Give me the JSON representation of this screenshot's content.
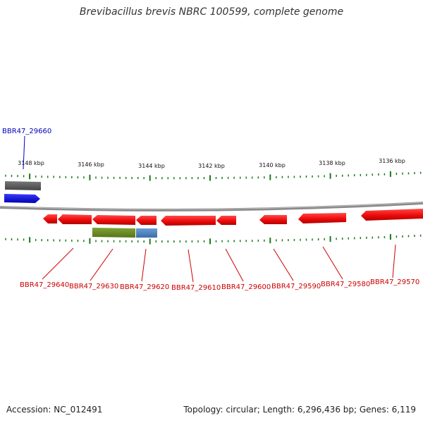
{
  "title": "Brevibacillus brevis NBRC 100599, complete genome",
  "footer": {
    "accession_label": "Accession: NC_012491",
    "summary": "Topology: circular; Length: 6,296,436 bp; Genes: 6,119"
  },
  "colors": {
    "backbone": "#8a8a8a",
    "tick": "#1a7a1a",
    "gene_reverse": "#ee1111",
    "gene_forward": "#1a1ae6",
    "gene_label_reverse": "#cc0000",
    "gene_label_forward": "#0000bb",
    "gray_feature": "#5a5a5a",
    "green_feature": "#6b8e23",
    "blue_feature": "#4f86c6"
  },
  "scale": {
    "unit": "kbp",
    "labels": [
      "3148 kbp",
      "3146 kbp",
      "3144 kbp",
      "3142 kbp",
      "3140 kbp",
      "3138 kbp",
      "3136 kbp"
    ]
  },
  "genes": [
    {
      "name": "BBR47_29660",
      "strand": "+",
      "color_key": "gene_forward"
    },
    {
      "name": "BBR47_29640",
      "strand": "-",
      "color_key": "gene_reverse"
    },
    {
      "name": "BBR47_29630",
      "strand": "-",
      "color_key": "gene_reverse"
    },
    {
      "name": "BBR47_29620",
      "strand": "-",
      "color_key": "gene_reverse"
    },
    {
      "name": "BBR47_29610",
      "strand": "-",
      "color_key": "gene_reverse"
    },
    {
      "name": "BBR47_29600",
      "strand": "-",
      "color_key": "gene_reverse"
    },
    {
      "name": "BBR47_29590",
      "strand": "-",
      "color_key": "gene_reverse"
    },
    {
      "name": "BBR47_29580",
      "strand": "-",
      "color_key": "gene_reverse"
    },
    {
      "name": "BBR47_29570",
      "strand": "-",
      "color_key": "gene_reverse"
    }
  ]
}
